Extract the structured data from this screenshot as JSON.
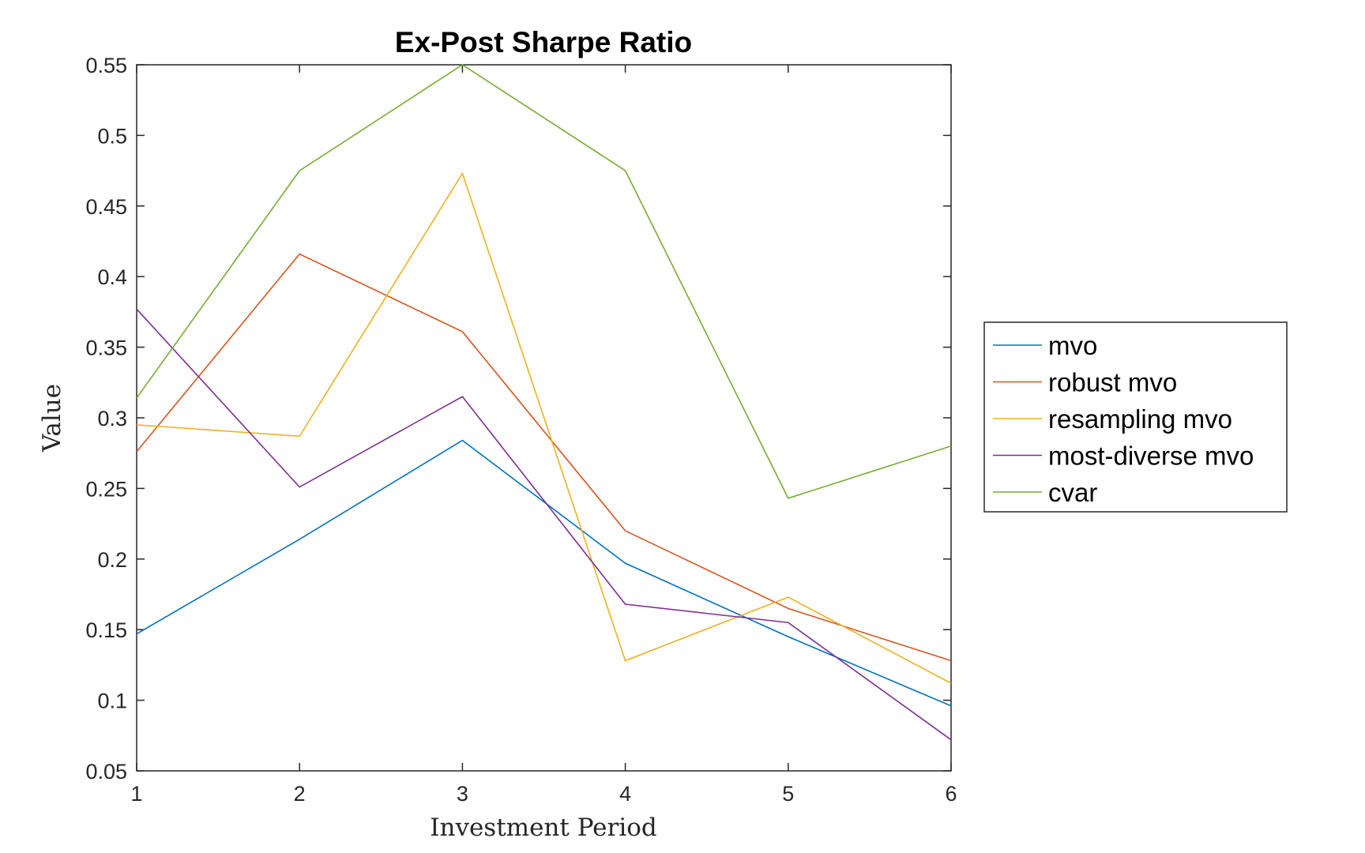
{
  "chart_data": {
    "type": "line",
    "title": "Ex-Post Sharpe Ratio",
    "xlabel": "Investment Period",
    "ylabel": "Value",
    "x": [
      1,
      2,
      3,
      4,
      5,
      6
    ],
    "xlim": [
      1,
      6
    ],
    "ylim": [
      0.05,
      0.55
    ],
    "xticks": [
      "1",
      "2",
      "3",
      "4",
      "5",
      "6"
    ],
    "yticks": [
      "0.05",
      "0.1",
      "0.15",
      "0.2",
      "0.25",
      "0.3",
      "0.35",
      "0.4",
      "0.45",
      "0.5",
      "0.55"
    ],
    "ytick_values": [
      0.05,
      0.1,
      0.15,
      0.2,
      0.25,
      0.3,
      0.35,
      0.4,
      0.45,
      0.5,
      0.55
    ],
    "grid": false,
    "legend_position": "right",
    "series": [
      {
        "name": "mvo",
        "color": "#0072BD",
        "values": [
          0.147,
          0.214,
          0.284,
          0.197,
          0.145,
          0.096
        ]
      },
      {
        "name": "robust mvo",
        "color": "#D95319",
        "values": [
          0.276,
          0.416,
          0.361,
          0.22,
          0.165,
          0.128
        ]
      },
      {
        "name": "resampling mvo",
        "color": "#EDB120",
        "values": [
          0.295,
          0.287,
          0.473,
          0.128,
          0.173,
          0.112
        ]
      },
      {
        "name": "most-diverse mvo",
        "color": "#7E2F8E",
        "values": [
          0.377,
          0.251,
          0.315,
          0.168,
          0.155,
          0.072
        ]
      },
      {
        "name": "cvar",
        "color": "#77AC30",
        "values": [
          0.314,
          0.475,
          0.55,
          0.475,
          0.243,
          0.28
        ]
      }
    ]
  }
}
